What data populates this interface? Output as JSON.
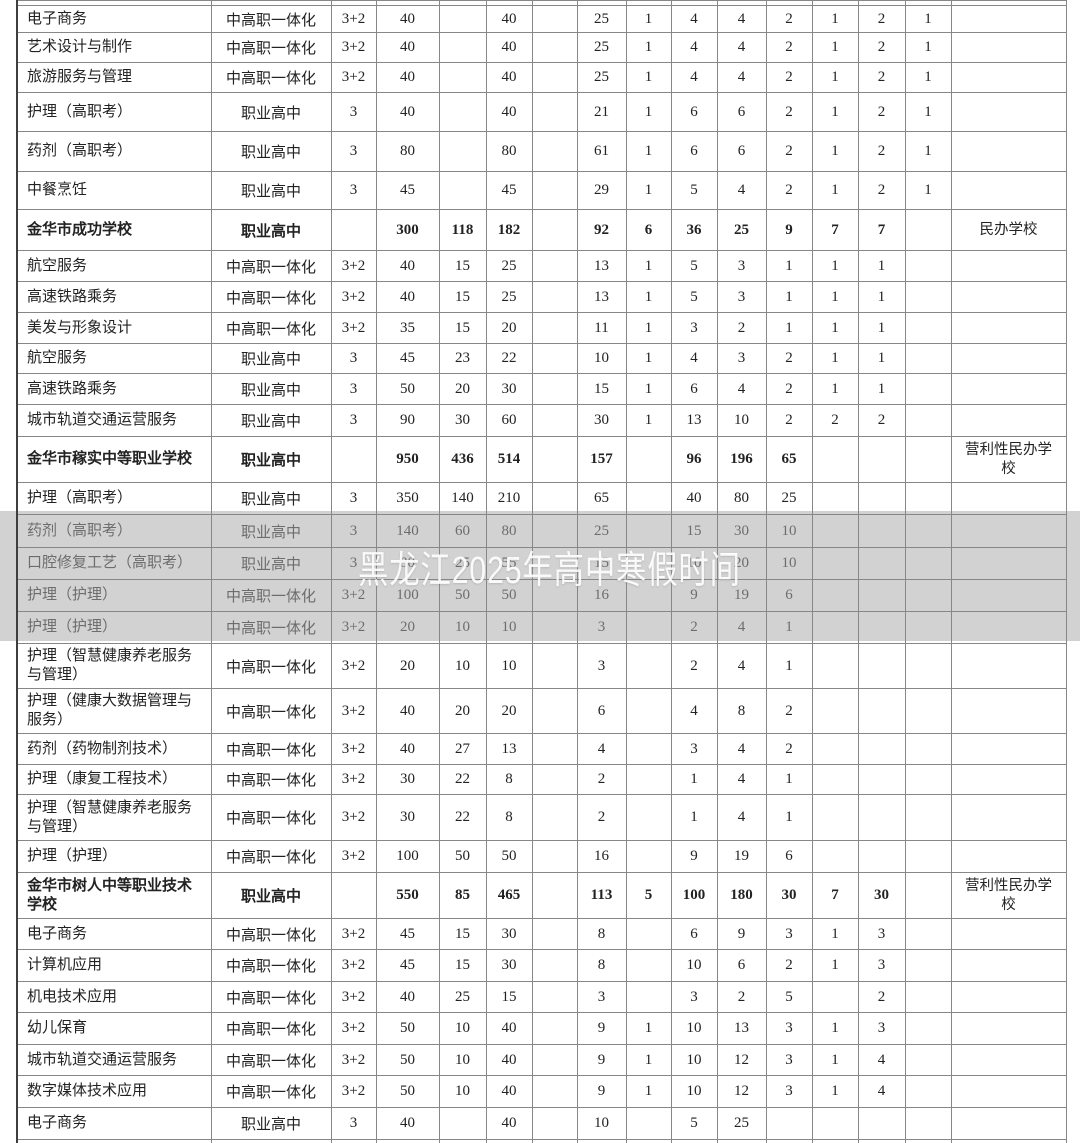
{
  "watermark": {
    "text": "黑龙江2025年高中寒假时间"
  },
  "colors": {
    "band": "#d2d2d2",
    "watermark_text": "rgba(255,255,255,0.92)",
    "grid": "#878787",
    "text": "#222222",
    "shaded_text": "#6d6d6d"
  },
  "table": {
    "rows": [
      {
        "kind": "major",
        "shaded": false,
        "cells": [
          "电子商务",
          "中高职一体化",
          "3+2",
          "40",
          "",
          "40",
          "",
          "25",
          "1",
          "4",
          "4",
          "2",
          "1",
          "2",
          "1",
          ""
        ]
      },
      {
        "kind": "major",
        "shaded": false,
        "cells": [
          "艺术设计与制作",
          "中高职一体化",
          "3+2",
          "40",
          "",
          "40",
          "",
          "25",
          "1",
          "4",
          "4",
          "2",
          "1",
          "2",
          "1",
          ""
        ]
      },
      {
        "kind": "major",
        "shaded": false,
        "cells": [
          "旅游服务与管理",
          "中高职一体化",
          "3+2",
          "40",
          "",
          "40",
          "",
          "25",
          "1",
          "4",
          "4",
          "2",
          "1",
          "2",
          "1",
          ""
        ]
      },
      {
        "kind": "major",
        "shaded": false,
        "cells": [
          "护理（高职考）",
          "职业高中",
          "3",
          "40",
          "",
          "40",
          "",
          "21",
          "1",
          "6",
          "6",
          "2",
          "1",
          "2",
          "1",
          ""
        ]
      },
      {
        "kind": "major",
        "shaded": false,
        "cells": [
          "药剂（高职考）",
          "职业高中",
          "3",
          "80",
          "",
          "80",
          "",
          "61",
          "1",
          "6",
          "6",
          "2",
          "1",
          "2",
          "1",
          ""
        ]
      },
      {
        "kind": "major",
        "shaded": false,
        "cells": [
          "中餐烹饪",
          "职业高中",
          "3",
          "45",
          "",
          "45",
          "",
          "29",
          "1",
          "5",
          "4",
          "2",
          "1",
          "2",
          "1",
          ""
        ]
      },
      {
        "kind": "school-total",
        "shaded": false,
        "cells": [
          "金华市成功学校",
          "职业高中",
          "",
          "300",
          "118",
          "182",
          "",
          "92",
          "6",
          "36",
          "25",
          "9",
          "7",
          "7",
          "",
          "民办学校"
        ]
      },
      {
        "kind": "major",
        "shaded": false,
        "cells": [
          "航空服务",
          "中高职一体化",
          "3+2",
          "40",
          "15",
          "25",
          "",
          "13",
          "1",
          "5",
          "3",
          "1",
          "1",
          "1",
          "",
          ""
        ]
      },
      {
        "kind": "major",
        "shaded": false,
        "cells": [
          "高速铁路乘务",
          "中高职一体化",
          "3+2",
          "40",
          "15",
          "25",
          "",
          "13",
          "1",
          "5",
          "3",
          "1",
          "1",
          "1",
          "",
          ""
        ]
      },
      {
        "kind": "major",
        "shaded": false,
        "cells": [
          "美发与形象设计",
          "中高职一体化",
          "3+2",
          "35",
          "15",
          "20",
          "",
          "11",
          "1",
          "3",
          "2",
          "1",
          "1",
          "1",
          "",
          ""
        ]
      },
      {
        "kind": "major",
        "shaded": false,
        "cells": [
          "航空服务",
          "职业高中",
          "3",
          "45",
          "23",
          "22",
          "",
          "10",
          "1",
          "4",
          "3",
          "2",
          "1",
          "1",
          "",
          ""
        ]
      },
      {
        "kind": "major",
        "shaded": false,
        "cells": [
          "高速铁路乘务",
          "职业高中",
          "3",
          "50",
          "20",
          "30",
          "",
          "15",
          "1",
          "6",
          "4",
          "2",
          "1",
          "1",
          "",
          ""
        ]
      },
      {
        "kind": "major",
        "shaded": false,
        "cells": [
          "城市轨道交通运营服务",
          "职业高中",
          "3",
          "90",
          "30",
          "60",
          "",
          "30",
          "1",
          "13",
          "10",
          "2",
          "2",
          "2",
          "",
          ""
        ]
      },
      {
        "kind": "school-total",
        "shaded": false,
        "cells": [
          "金华市稼实中等职业学校",
          "职业高中",
          "",
          "950",
          "436",
          "514",
          "",
          "157",
          "",
          "96",
          "196",
          "65",
          "",
          "",
          "",
          "营利性民办学校"
        ]
      },
      {
        "kind": "major",
        "shaded": false,
        "cells": [
          "护理（高职考）",
          "职业高中",
          "3",
          "350",
          "140",
          "210",
          "",
          "65",
          "",
          "40",
          "80",
          "25",
          "",
          "",
          "",
          ""
        ]
      },
      {
        "kind": "major",
        "shaded": true,
        "cells": [
          "药剂（高职考）",
          "职业高中",
          "3",
          "140",
          "60",
          "80",
          "",
          "25",
          "",
          "15",
          "30",
          "10",
          "",
          "",
          "",
          ""
        ]
      },
      {
        "kind": "major",
        "shaded": true,
        "cells": [
          "口腔修复工艺（高职考）",
          "职业高中",
          "3",
          "80",
          "25",
          "55",
          "",
          "15",
          "",
          "10",
          "20",
          "10",
          "",
          "",
          "",
          ""
        ]
      },
      {
        "kind": "major",
        "shaded": true,
        "cells": [
          "护理（护理）",
          "中高职一体化",
          "3+2",
          "100",
          "50",
          "50",
          "",
          "16",
          "",
          "9",
          "19",
          "6",
          "",
          "",
          "",
          ""
        ]
      },
      {
        "kind": "major",
        "shaded": true,
        "cells": [
          "护理（护理）",
          "中高职一体化",
          "3+2",
          "20",
          "10",
          "10",
          "",
          "3",
          "",
          "2",
          "4",
          "1",
          "",
          "",
          "",
          ""
        ]
      },
      {
        "kind": "major",
        "shaded": false,
        "cells": [
          "护理（智慧健康养老服务与管理）",
          "中高职一体化",
          "3+2",
          "20",
          "10",
          "10",
          "",
          "3",
          "",
          "2",
          "4",
          "1",
          "",
          "",
          "",
          ""
        ]
      },
      {
        "kind": "major",
        "shaded": false,
        "cells": [
          "护理（健康大数据管理与服务）",
          "中高职一体化",
          "3+2",
          "40",
          "20",
          "20",
          "",
          "6",
          "",
          "4",
          "8",
          "2",
          "",
          "",
          "",
          ""
        ]
      },
      {
        "kind": "major",
        "shaded": false,
        "cells": [
          "药剂（药物制剂技术）",
          "中高职一体化",
          "3+2",
          "40",
          "27",
          "13",
          "",
          "4",
          "",
          "3",
          "4",
          "2",
          "",
          "",
          "",
          ""
        ]
      },
      {
        "kind": "major",
        "shaded": false,
        "cells": [
          "护理（康复工程技术）",
          "中高职一体化",
          "3+2",
          "30",
          "22",
          "8",
          "",
          "2",
          "",
          "1",
          "4",
          "1",
          "",
          "",
          "",
          ""
        ]
      },
      {
        "kind": "major",
        "shaded": false,
        "cells": [
          "护理（智慧健康养老服务与管理）",
          "中高职一体化",
          "3+2",
          "30",
          "22",
          "8",
          "",
          "2",
          "",
          "1",
          "4",
          "1",
          "",
          "",
          "",
          ""
        ]
      },
      {
        "kind": "major",
        "shaded": false,
        "cells": [
          "护理（护理）",
          "中高职一体化",
          "3+2",
          "100",
          "50",
          "50",
          "",
          "16",
          "",
          "9",
          "19",
          "6",
          "",
          "",
          "",
          ""
        ]
      },
      {
        "kind": "school-total",
        "shaded": false,
        "cells": [
          "金华市树人中等职业技术学校",
          "职业高中",
          "",
          "550",
          "85",
          "465",
          "",
          "113",
          "5",
          "100",
          "180",
          "30",
          "7",
          "30",
          "",
          "营利性民办学校"
        ]
      },
      {
        "kind": "major",
        "shaded": false,
        "cells": [
          "电子商务",
          "中高职一体化",
          "3+2",
          "45",
          "15",
          "30",
          "",
          "8",
          "",
          "6",
          "9",
          "3",
          "1",
          "3",
          "",
          ""
        ]
      },
      {
        "kind": "major",
        "shaded": false,
        "cells": [
          "计算机应用",
          "中高职一体化",
          "3+2",
          "45",
          "15",
          "30",
          "",
          "8",
          "",
          "10",
          "6",
          "2",
          "1",
          "3",
          "",
          ""
        ]
      },
      {
        "kind": "major",
        "shaded": false,
        "cells": [
          "机电技术应用",
          "中高职一体化",
          "3+2",
          "40",
          "25",
          "15",
          "",
          "3",
          "",
          "3",
          "2",
          "5",
          "",
          "2",
          "",
          ""
        ]
      },
      {
        "kind": "major",
        "shaded": false,
        "cells": [
          "幼儿保育",
          "中高职一体化",
          "3+2",
          "50",
          "10",
          "40",
          "",
          "9",
          "1",
          "10",
          "13",
          "3",
          "1",
          "3",
          "",
          ""
        ]
      },
      {
        "kind": "major",
        "shaded": false,
        "cells": [
          "城市轨道交通运营服务",
          "中高职一体化",
          "3+2",
          "50",
          "10",
          "40",
          "",
          "9",
          "1",
          "10",
          "12",
          "3",
          "1",
          "4",
          "",
          ""
        ]
      },
      {
        "kind": "major",
        "shaded": false,
        "cells": [
          "数字媒体技术应用",
          "中高职一体化",
          "3+2",
          "50",
          "10",
          "40",
          "",
          "9",
          "1",
          "10",
          "12",
          "3",
          "1",
          "4",
          "",
          ""
        ]
      },
      {
        "kind": "major",
        "shaded": false,
        "cells": [
          "电子商务",
          "职业高中",
          "3",
          "40",
          "",
          "40",
          "",
          "10",
          "",
          "5",
          "25",
          "",
          "",
          "",
          "",
          ""
        ]
      }
    ]
  }
}
